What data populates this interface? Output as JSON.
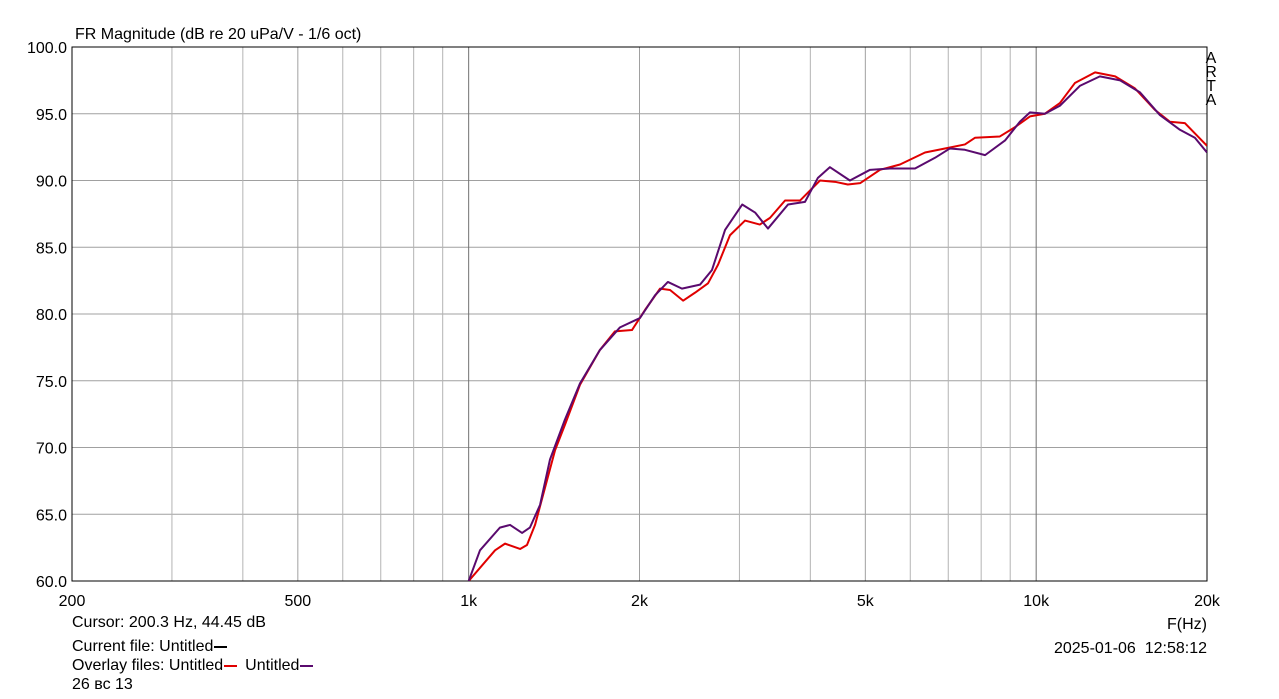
{
  "chart_data": {
    "type": "line",
    "title": "FR Magnitude (dB re 20 uPa/V - 1/6 oct)",
    "x_label": "F(Hz)",
    "side_label": "ARTA",
    "log_x": true,
    "grid": true,
    "xlim": [
      200,
      20000
    ],
    "ylim": [
      60,
      100
    ],
    "xticks": [
      200,
      500,
      {
        "value": 1000,
        "label": "1k"
      },
      {
        "value": 2000,
        "label": "2k"
      },
      {
        "value": 5000,
        "label": "5k"
      },
      {
        "value": 10000,
        "label": "10k"
      },
      {
        "value": 20000,
        "label": "20k"
      }
    ],
    "xgrid": [
      300,
      400,
      600,
      700,
      800,
      900,
      3000,
      4000,
      6000,
      7000,
      8000,
      9000
    ],
    "yticks": [
      {
        "value": 60,
        "label": "60.0"
      },
      {
        "value": 65,
        "label": "65.0"
      },
      {
        "value": 70,
        "label": "70.0"
      },
      {
        "value": 75,
        "label": "75.0"
      },
      {
        "value": 80,
        "label": "80.0"
      },
      {
        "value": 85,
        "label": "85.0"
      },
      {
        "value": 90,
        "label": "90.0"
      },
      {
        "value": 95,
        "label": "95.0"
      },
      {
        "value": 100,
        "label": "100.0"
      }
    ],
    "series": [
      {
        "name": "Untitled",
        "color": "#e00000",
        "x": [
          1000,
          1113,
          1159,
          1232,
          1267,
          1309,
          1420,
          1478,
          1571,
          1703,
          1810,
          1940,
          2045,
          2174,
          2264,
          2387,
          2506,
          2641,
          2751,
          2887,
          3069,
          3259,
          3396,
          3610,
          3836,
          4160,
          4422,
          4657,
          4895,
          5307,
          5755,
          6370,
          6906,
          7490,
          7800,
          8630,
          9180,
          9752,
          10360,
          11010,
          11700,
          12700,
          13780,
          14930,
          16180,
          17210,
          18280,
          20000
        ],
        "values": [
          60,
          62.3,
          62.8,
          62.4,
          62.7,
          64.2,
          69.8,
          71.7,
          74.7,
          77.3,
          78.7,
          78.8,
          80.3,
          81.9,
          81.8,
          81.0,
          81.6,
          82.3,
          83.7,
          85.9,
          87.0,
          86.7,
          87.2,
          88.5,
          88.5,
          90.0,
          89.9,
          89.7,
          89.8,
          90.8,
          91.2,
          92.1,
          92.4,
          92.7,
          93.2,
          93.3,
          94.0,
          94.8,
          95.0,
          95.8,
          97.3,
          98.1,
          97.8,
          96.9,
          95.3,
          94.4,
          94.3,
          92.6
        ]
      },
      {
        "name": "Untitled",
        "color": "#5a0a6e",
        "x": [
          1000,
          1047,
          1135,
          1183,
          1242,
          1282,
          1336,
          1391,
          1478,
          1571,
          1703,
          1848,
          2004,
          2130,
          2244,
          2376,
          2557,
          2684,
          2830,
          3034,
          3197,
          3368,
          3654,
          3914,
          4125,
          4331,
          4697,
          5096,
          5527,
          6117,
          6633,
          7048,
          7490,
          8128,
          8814,
          9360,
          9752,
          10360,
          11010,
          11950,
          12950,
          14060,
          15240,
          16520,
          17920,
          19040,
          20000
        ],
        "values": [
          60,
          62.3,
          64.0,
          64.2,
          63.6,
          64.0,
          65.7,
          69.1,
          72.1,
          74.8,
          77.3,
          79.0,
          79.7,
          81.4,
          82.4,
          81.9,
          82.2,
          83.3,
          86.3,
          88.2,
          87.6,
          86.4,
          88.2,
          88.4,
          90.2,
          91.0,
          90.0,
          90.8,
          90.9,
          90.9,
          91.7,
          92.4,
          92.3,
          91.9,
          93.0,
          94.4,
          95.1,
          95.0,
          95.6,
          97.1,
          97.8,
          97.5,
          96.6,
          94.9,
          93.8,
          93.2,
          92.1
        ]
      }
    ]
  },
  "footer": {
    "cursor": "Cursor: 200.3 Hz, 44.45 dB",
    "current_label": "Current file: ",
    "current_name": "Untitled",
    "current_color": "#000000",
    "overlay_label": "Overlay files: ",
    "note": "26 вс 13",
    "timestamp": "2025-01-06  12:58:12"
  }
}
